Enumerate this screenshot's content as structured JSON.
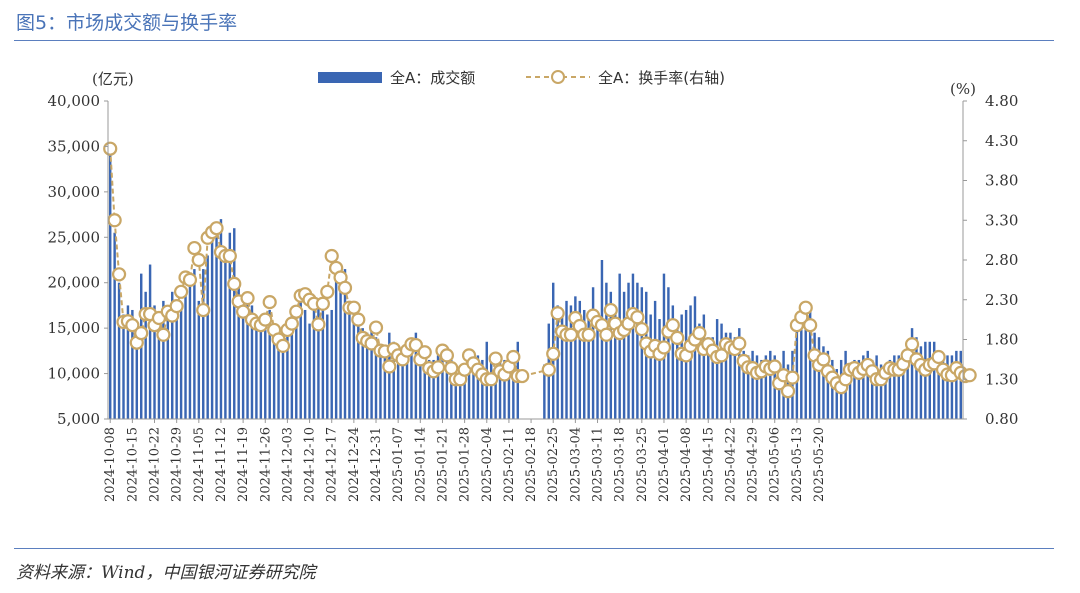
{
  "header": {
    "title": "图5：市场成交额与换手率"
  },
  "footer": {
    "source": "资料来源：Wind，中国银河证券研究院"
  },
  "colors": {
    "bar": "#3a66b3",
    "line": "#c9a766",
    "marker_fill": "#ffffff",
    "accent": "#4a74b8"
  },
  "chart_data": {
    "type": "bar+line",
    "left_axis_unit": "(亿元)",
    "right_axis_unit": "(%)",
    "left_ylim": [
      5000,
      40000
    ],
    "left_ticks": [
      "5,000",
      "10,000",
      "15,000",
      "20,000",
      "25,000",
      "30,000",
      "35,000",
      "40,000"
    ],
    "right_ylim": [
      0.8,
      4.8
    ],
    "right_ticks": [
      "0.80",
      "1.30",
      "1.80",
      "2.30",
      "2.80",
      "3.30",
      "3.80",
      "4.30",
      "4.80"
    ],
    "x_tick_labels": [
      "2024-10-08",
      "2024-10-15",
      "2024-10-22",
      "2024-10-29",
      "2024-11-05",
      "2024-11-12",
      "2024-11-19",
      "2024-11-26",
      "2024-12-03",
      "2024-12-10",
      "2024-12-17",
      "2024-12-24",
      "2024-12-31",
      "2025-01-07",
      "2025-01-14",
      "2025-01-21",
      "2025-01-28",
      "2025-02-04",
      "2025-02-11",
      "2025-02-18",
      "2025-02-25",
      "2025-03-04",
      "2025-03-11",
      "2025-03-18",
      "2025-03-25",
      "2025-04-01",
      "2025-04-08",
      "2025-04-15",
      "2025-04-22",
      "2025-04-29",
      "2025-05-06",
      "2025-05-13",
      "2025-05-20"
    ],
    "series": [
      {
        "name": "全A：成交额",
        "axis": "left",
        "type": "bar",
        "values": [
          34800,
          25500,
          20000,
          16500,
          17500,
          17000,
          15500,
          21000,
          19000,
          22000,
          17500,
          16500,
          18000,
          17500,
          19000,
          17500,
          17000,
          19000,
          20500,
          21500,
          18000,
          21500,
          23000,
          26000,
          26500,
          27000,
          23000,
          25500,
          26000,
          19500,
          17000,
          18500,
          17500,
          16000,
          15500,
          16500,
          17000,
          15000,
          14000,
          14500,
          15500,
          17000,
          17500,
          18500,
          17000,
          15500,
          18000,
          17500,
          18000,
          16500,
          17000,
          21000,
          20500,
          21500,
          16500,
          17000,
          15500,
          15000,
          14500,
          15000,
          14000,
          12500,
          13000,
          14500,
          13500,
          12500,
          12000,
          13500,
          13500,
          14500,
          13000,
          12000,
          11500,
          11500,
          12000,
          12000,
          12000,
          11500,
          11000,
          10500,
          10000,
          11500,
          11000,
          12000,
          11500,
          13500,
          11500,
          10500,
          11500,
          11500,
          11000,
          12500,
          13500,
          null,
          null,
          null,
          null,
          null,
          11000,
          15500,
          20000,
          17500,
          16500,
          18000,
          17500,
          18500,
          18000,
          17000,
          16500,
          19500,
          16500,
          22500,
          20000,
          19000,
          17000,
          21000,
          19000,
          20000,
          21000,
          20000,
          19500,
          19000,
          16500,
          18000,
          16000,
          21000,
          19500,
          17500,
          15500,
          16500,
          17000,
          17500,
          18500,
          15500,
          16500,
          14000,
          14000,
          16000,
          15500,
          14500,
          14500,
          14000,
          15000,
          12500,
          12000,
          12500,
          12000,
          11500,
          12000,
          12500,
          12000,
          10500,
          12500,
          11000,
          12500,
          15500,
          15500,
          16000,
          17000,
          14500,
          14000,
          13000,
          12500,
          11500,
          10500,
          11500,
          12500,
          11000,
          11500,
          11500,
          12000,
          12500,
          11500,
          12000,
          11000,
          10500,
          11500,
          12000,
          12000,
          12500,
          13500,
          15000,
          14000,
          13000,
          13500,
          13500,
          13500,
          12500,
          11500,
          12000,
          12000,
          12500,
          12500
        ]
      },
      {
        "name": "全A：换手率(右轴)",
        "axis": "right",
        "type": "line",
        "values": [
          4.2,
          3.3,
          2.62,
          2.02,
          2.03,
          1.98,
          1.76,
          1.88,
          2.12,
          2.12,
          1.98,
          2.07,
          1.86,
          2.15,
          2.1,
          2.22,
          2.4,
          2.58,
          2.55,
          2.95,
          2.8,
          2.17,
          3.08,
          3.15,
          3.2,
          2.9,
          2.85,
          2.85,
          2.5,
          2.28,
          2.15,
          2.32,
          2.05,
          2.0,
          1.98,
          2.05,
          2.27,
          1.92,
          1.8,
          1.72,
          1.92,
          2.0,
          2.15,
          2.35,
          2.37,
          2.3,
          2.25,
          1.99,
          2.25,
          2.4,
          2.85,
          2.7,
          2.58,
          2.45,
          2.2,
          2.2,
          2.05,
          1.82,
          1.78,
          1.75,
          1.95,
          1.66,
          1.65,
          1.46,
          1.68,
          1.6,
          1.55,
          1.66,
          1.74,
          1.73,
          1.55,
          1.64,
          1.44,
          1.4,
          1.45,
          1.66,
          1.6,
          1.44,
          1.3,
          1.3,
          1.42,
          1.6,
          1.5,
          1.42,
          1.36,
          1.3,
          1.3,
          1.56,
          1.4,
          1.36,
          1.46,
          1.58,
          1.34,
          1.34,
          null,
          null,
          null,
          null,
          null,
          1.42,
          1.62,
          2.13,
          1.9,
          1.86,
          1.86,
          2.07,
          1.97,
          1.86,
          1.86,
          2.1,
          2.02,
          1.98,
          1.86,
          2.17,
          2.0,
          1.88,
          1.92,
          2.0,
          2.12,
          2.08,
          1.93,
          1.75,
          1.65,
          1.72,
          1.62,
          1.7,
          1.9,
          1.98,
          1.82,
          1.62,
          1.6,
          1.72,
          1.8,
          1.88,
          1.68,
          1.74,
          1.66,
          1.58,
          1.6,
          1.74,
          1.7,
          1.68,
          1.75,
          1.53,
          1.45,
          1.44,
          1.38,
          1.4,
          1.46,
          1.43,
          1.46,
          1.25,
          1.35,
          1.15,
          1.32,
          1.98,
          2.08,
          2.2,
          1.98,
          1.6,
          1.48,
          1.55,
          1.4,
          1.32,
          1.25,
          1.2,
          1.3,
          1.42,
          1.44,
          1.38,
          1.43,
          1.48,
          1.4,
          1.3,
          1.3,
          1.38,
          1.44,
          1.42,
          1.42,
          1.49,
          1.6,
          1.74,
          1.55,
          1.48,
          1.42,
          1.48,
          1.5,
          1.58,
          1.42,
          1.36,
          1.35,
          1.44,
          1.38,
          1.34,
          1.35
        ]
      }
    ]
  }
}
